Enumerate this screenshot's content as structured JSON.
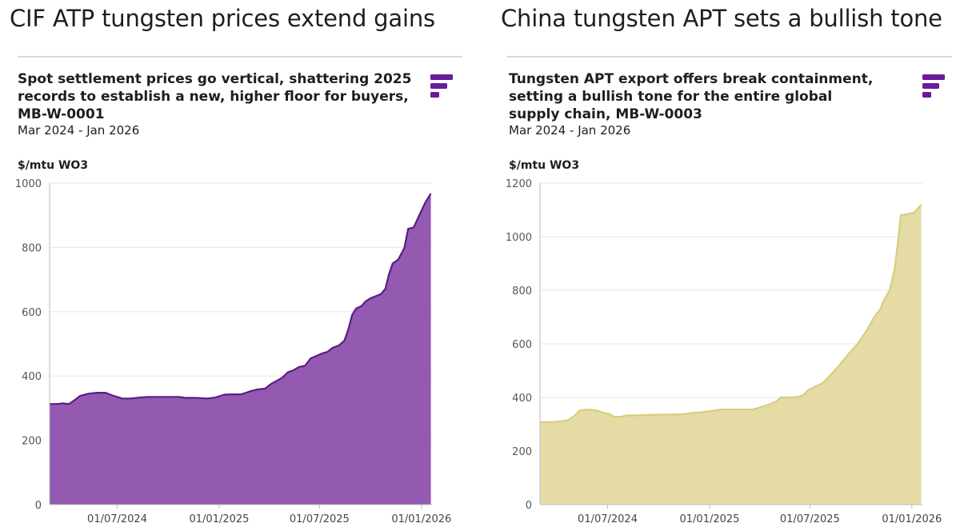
{
  "panels": [
    {
      "headline": "CIF ATP tungsten prices extend gains",
      "title": "Spot settlement prices go vertical, shattering 2025 records to establish a new, higher floor for buyers, MB-W-0001",
      "date_range": "Mar 2024 - Jan 2026",
      "unit": "$/mtu WO3",
      "logo_icon": "fastmarkets-logo-icon",
      "colors": {
        "fill": "#9459b0",
        "line": "#5b1d86",
        "logo": "#6a1b9a"
      }
    },
    {
      "headline": "China tungsten APT sets a bullish tone",
      "title": "Tungsten APT export offers break containment, setting a bullish tone for the entire global supply chain, MB-W-0003",
      "date_range": "Mar 2024 - Jan 2026",
      "unit": "$/mtu WO3",
      "logo_icon": "fastmarkets-logo-icon",
      "colors": {
        "fill": "#e4dca4",
        "line": "#d8cd7e",
        "logo": "#6a1b9a"
      }
    }
  ],
  "chart_data": [
    {
      "type": "area",
      "title": "Spot settlement prices go vertical, shattering 2025 records to establish a new, higher floor for buyers, MB-W-0001",
      "xlabel": "",
      "ylabel": "$/mtu WO3",
      "ylim": [
        0,
        1000
      ],
      "yticks": [
        0,
        200,
        400,
        600,
        800,
        1000
      ],
      "xlim": [
        "2024-03-01",
        "2026-01-20"
      ],
      "xticks": [
        {
          "date": "2024-07-01",
          "label": "01/07/2024"
        },
        {
          "date": "2025-01-01",
          "label": "01/01/2025"
        },
        {
          "date": "2025-07-01",
          "label": "01/07/2025"
        },
        {
          "date": "2026-01-01",
          "label": "01/01/2026"
        }
      ],
      "grid": true,
      "series": [
        {
          "name": "MB-W-0001",
          "points": [
            [
              "2024-03-01",
              313
            ],
            [
              "2024-03-15",
              313
            ],
            [
              "2024-03-25",
              315
            ],
            [
              "2024-04-05",
              313
            ],
            [
              "2024-04-15",
              325
            ],
            [
              "2024-04-25",
              338
            ],
            [
              "2024-05-10",
              345
            ],
            [
              "2024-05-25",
              348
            ],
            [
              "2024-06-10",
              348
            ],
            [
              "2024-06-25",
              338
            ],
            [
              "2024-07-10",
              330
            ],
            [
              "2024-07-25",
              330
            ],
            [
              "2024-08-10",
              333
            ],
            [
              "2024-08-25",
              335
            ],
            [
              "2024-09-15",
              335
            ],
            [
              "2024-10-05",
              335
            ],
            [
              "2024-10-20",
              335
            ],
            [
              "2024-11-01",
              332
            ],
            [
              "2024-11-20",
              332
            ],
            [
              "2024-12-10",
              330
            ],
            [
              "2024-12-25",
              333
            ],
            [
              "2025-01-10",
              342
            ],
            [
              "2025-01-25",
              343
            ],
            [
              "2025-02-10",
              343
            ],
            [
              "2025-02-25",
              352
            ],
            [
              "2025-03-10",
              358
            ],
            [
              "2025-03-25",
              361
            ],
            [
              "2025-04-05",
              376
            ],
            [
              "2025-04-15",
              385
            ],
            [
              "2025-04-25",
              395
            ],
            [
              "2025-05-05",
              412
            ],
            [
              "2025-05-15",
              418
            ],
            [
              "2025-05-25",
              428
            ],
            [
              "2025-06-05",
              432
            ],
            [
              "2025-06-15",
              455
            ],
            [
              "2025-06-25",
              462
            ],
            [
              "2025-07-05",
              470
            ],
            [
              "2025-07-15",
              475
            ],
            [
              "2025-07-25",
              488
            ],
            [
              "2025-08-05",
              495
            ],
            [
              "2025-08-15",
              510
            ],
            [
              "2025-08-22",
              545
            ],
            [
              "2025-08-29",
              590
            ],
            [
              "2025-09-05",
              610
            ],
            [
              "2025-09-15",
              618
            ],
            [
              "2025-09-22",
              632
            ],
            [
              "2025-10-01",
              642
            ],
            [
              "2025-10-10",
              648
            ],
            [
              "2025-10-20",
              655
            ],
            [
              "2025-10-28",
              672
            ],
            [
              "2025-11-03",
              715
            ],
            [
              "2025-11-10",
              750
            ],
            [
              "2025-11-20",
              762
            ],
            [
              "2025-12-01",
              798
            ],
            [
              "2025-12-08",
              858
            ],
            [
              "2025-12-18",
              862
            ],
            [
              "2025-12-28",
              900
            ],
            [
              "2026-01-08",
              940
            ],
            [
              "2026-01-18",
              968
            ]
          ]
        }
      ]
    },
    {
      "type": "area",
      "title": "Tungsten APT export offers break containment, setting a bullish tone for the entire global supply chain, MB-W-0003",
      "xlabel": "",
      "ylabel": "$/mtu WO3",
      "ylim": [
        0,
        1200
      ],
      "yticks": [
        0,
        200,
        400,
        600,
        800,
        1000,
        1200
      ],
      "xlim": [
        "2024-03-01",
        "2026-01-20"
      ],
      "xticks": [
        {
          "date": "2024-07-01",
          "label": "01/07/2024"
        },
        {
          "date": "2025-01-01",
          "label": "01/01/2025"
        },
        {
          "date": "2025-07-01",
          "label": "01/07/2025"
        },
        {
          "date": "2026-01-01",
          "label": "01/01/2026"
        }
      ],
      "grid": true,
      "series": [
        {
          "name": "MB-W-0003",
          "points": [
            [
              "2024-03-01",
              308
            ],
            [
              "2024-03-20",
              308
            ],
            [
              "2024-04-05",
              310
            ],
            [
              "2024-04-20",
              315
            ],
            [
              "2024-05-01",
              330
            ],
            [
              "2024-05-12",
              352
            ],
            [
              "2024-05-25",
              355
            ],
            [
              "2024-06-10",
              352
            ],
            [
              "2024-06-25",
              342
            ],
            [
              "2024-07-05",
              338
            ],
            [
              "2024-07-12",
              328
            ],
            [
              "2024-07-25",
              328
            ],
            [
              "2024-08-05",
              333
            ],
            [
              "2024-08-25",
              333
            ],
            [
              "2024-09-15",
              335
            ],
            [
              "2024-10-05",
              336
            ],
            [
              "2024-10-25",
              336
            ],
            [
              "2024-11-15",
              338
            ],
            [
              "2024-12-01",
              342
            ],
            [
              "2024-12-20",
              345
            ],
            [
              "2025-01-05",
              350
            ],
            [
              "2025-01-20",
              355
            ],
            [
              "2025-02-10",
              355
            ],
            [
              "2025-03-01",
              355
            ],
            [
              "2025-03-20",
              355
            ],
            [
              "2025-04-05",
              365
            ],
            [
              "2025-04-20",
              375
            ],
            [
              "2025-05-01",
              385
            ],
            [
              "2025-05-10",
              400
            ],
            [
              "2025-05-25",
              400
            ],
            [
              "2025-06-10",
              402
            ],
            [
              "2025-06-20",
              410
            ],
            [
              "2025-06-28",
              428
            ],
            [
              "2025-07-10",
              440
            ],
            [
              "2025-07-25",
              455
            ],
            [
              "2025-08-10",
              490
            ],
            [
              "2025-08-25",
              525
            ],
            [
              "2025-09-10",
              565
            ],
            [
              "2025-09-25",
              600
            ],
            [
              "2025-10-10",
              645
            ],
            [
              "2025-10-25",
              700
            ],
            [
              "2025-11-05",
              730
            ],
            [
              "2025-11-12",
              765
            ],
            [
              "2025-11-22",
              800
            ],
            [
              "2025-12-01",
              880
            ],
            [
              "2025-12-08",
              1000
            ],
            [
              "2025-12-12",
              1080
            ],
            [
              "2025-12-25",
              1085
            ],
            [
              "2026-01-05",
              1090
            ],
            [
              "2026-01-18",
              1120
            ]
          ]
        }
      ]
    }
  ]
}
